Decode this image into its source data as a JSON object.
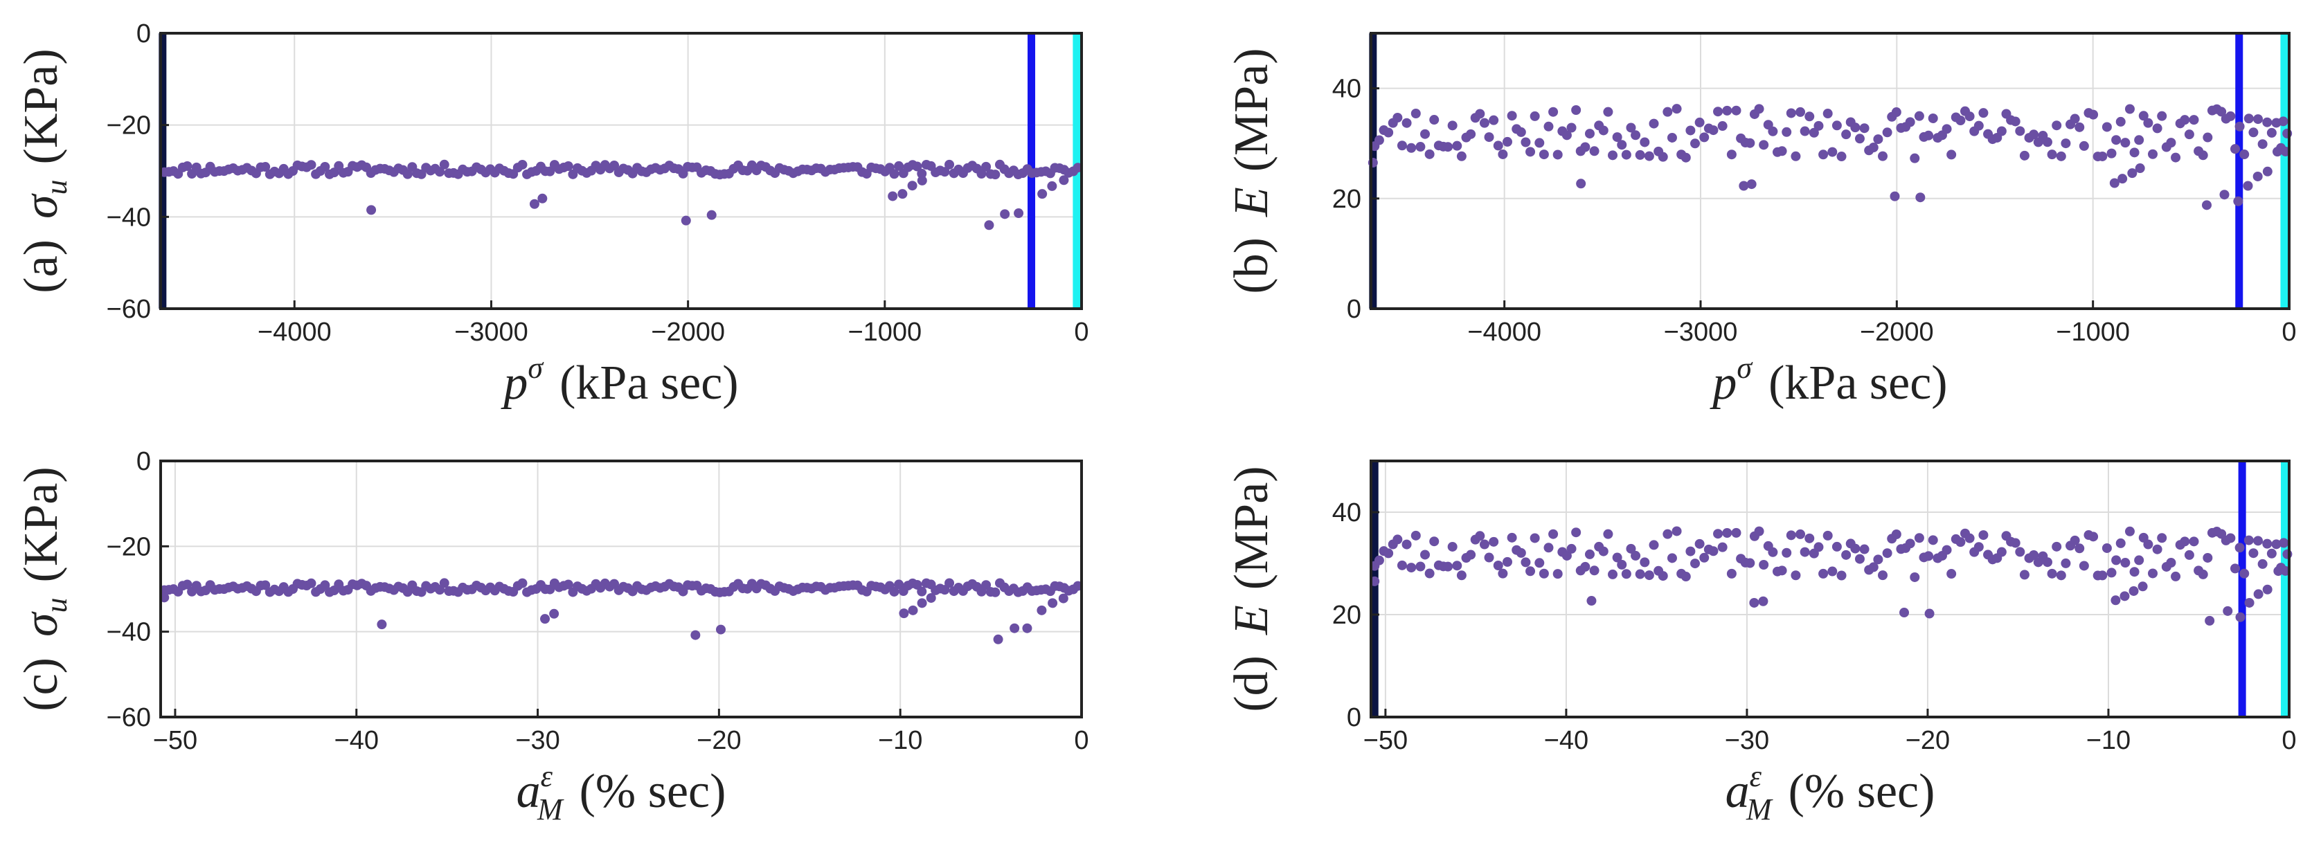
{
  "colors": {
    "points": "#6a4fa3",
    "navy_line": "#0b1442",
    "blue_line": "#1414ee",
    "cyan_line": "#1ef2f2",
    "frame": "#222222",
    "grid": "#dcdcdc"
  },
  "chart_data": [
    {
      "id": "a",
      "type": "scatter",
      "panel_label": "(a)",
      "ylabel_symbol": "σ",
      "ylabel_sub": "u",
      "ylabel_unit": "(KPa)",
      "xlabel_symbol": "p",
      "xlabel_sup": "σ",
      "xlabel_sub": "",
      "xlabel_unit": "(kPa sec)",
      "xlim": [
        -4680,
        0
      ],
      "ylim": [
        -60,
        0
      ],
      "xticks": [
        -4000,
        -3000,
        -2000,
        -1000,
        0
      ],
      "yticks": [
        -60,
        -40,
        -20,
        0
      ],
      "xtick_labels": [
        "−4000",
        "−3000",
        "−2000",
        "−1000",
        "0"
      ],
      "ytick_labels": [
        "−60",
        "−40",
        "−20",
        "0"
      ],
      "vlines": [
        {
          "x": -4670,
          "color": "#0b1442"
        },
        {
          "x": -255,
          "color": "#1414ee"
        },
        {
          "x": -25,
          "color": "#1ef2f2"
        }
      ],
      "outliers": [
        [
          -3610,
          -38.5
        ],
        [
          -2780,
          -37.2
        ],
        [
          -2740,
          -36.0
        ],
        [
          -2010,
          -40.8
        ],
        [
          -1880,
          -39.6
        ],
        [
          -960,
          -35.5
        ],
        [
          -910,
          -35.0
        ],
        [
          -860,
          -33.2
        ],
        [
          -810,
          -32.1
        ],
        [
          -470,
          -41.8
        ],
        [
          -390,
          -39.4
        ],
        [
          -320,
          -39.2
        ],
        [
          -200,
          -35.0
        ],
        [
          -150,
          -33.3
        ],
        [
          -90,
          -32.0
        ]
      ]
    },
    {
      "id": "b",
      "type": "scatter",
      "panel_label": "(b)",
      "ylabel_symbol": "E",
      "ylabel_sub": "",
      "ylabel_unit": "(MPa)",
      "xlabel_symbol": "p",
      "xlabel_sup": "σ",
      "xlabel_sub": "",
      "xlabel_unit": "(kPa sec)",
      "xlim": [
        -4680,
        0
      ],
      "ylim": [
        0,
        50
      ],
      "xticks": [
        -4000,
        -3000,
        -2000,
        -1000,
        0
      ],
      "yticks": [
        0,
        20,
        40
      ],
      "xtick_labels": [
        "−4000",
        "−3000",
        "−2000",
        "−1000",
        "0"
      ],
      "ytick_labels": [
        "0",
        "20",
        "40"
      ],
      "vlines": [
        {
          "x": -4670,
          "color": "#0b1442"
        },
        {
          "x": -255,
          "color": "#1414ee"
        },
        {
          "x": -25,
          "color": "#1ef2f2"
        }
      ],
      "outliers": [
        [
          -4670,
          26.5
        ],
        [
          -3610,
          22.7
        ],
        [
          -2780,
          22.3
        ],
        [
          -2740,
          22.6
        ],
        [
          -2010,
          20.4
        ],
        [
          -1880,
          20.2
        ],
        [
          -890,
          22.8
        ],
        [
          -850,
          23.6
        ],
        [
          -800,
          24.6
        ],
        [
          -760,
          25.5
        ],
        [
          -420,
          18.8
        ],
        [
          -330,
          20.7
        ],
        [
          -260,
          19.5
        ],
        [
          -210,
          22.3
        ],
        [
          -160,
          24.0
        ],
        [
          -110,
          24.9
        ],
        [
          -60,
          28.5
        ],
        [
          -30,
          34.0
        ],
        [
          -10,
          31.8
        ]
      ]
    },
    {
      "id": "c",
      "type": "scatter",
      "panel_label": "(c)",
      "ylabel_symbol": "σ",
      "ylabel_sub": "u",
      "ylabel_unit": "(KPa)",
      "xlabel_symbol": "a",
      "xlabel_sup": "ε",
      "xlabel_sub": "M",
      "xlabel_unit": "(% sec)",
      "xlim": [
        -50.8,
        0
      ],
      "ylim": [
        -60,
        0
      ],
      "xticks": [
        -50,
        -40,
        -30,
        -20,
        -10,
        0
      ],
      "yticks": [
        -60,
        -40,
        -20,
        0
      ],
      "xtick_labels": [
        "−50",
        "−40",
        "−30",
        "−20",
        "−10",
        "0"
      ],
      "ytick_labels": [
        "−60",
        "−40",
        "−20",
        "0"
      ],
      "vlines": [],
      "outliers": [
        [
          -50.6,
          -32.0
        ],
        [
          -38.6,
          -38.3
        ],
        [
          -29.6,
          -37.0
        ],
        [
          -29.1,
          -35.8
        ],
        [
          -21.3,
          -40.8
        ],
        [
          -19.9,
          -39.5
        ],
        [
          -9.8,
          -35.7
        ],
        [
          -9.3,
          -35.0
        ],
        [
          -8.8,
          -33.3
        ],
        [
          -8.3,
          -32.1
        ],
        [
          -4.6,
          -41.8
        ],
        [
          -3.7,
          -39.2
        ],
        [
          -3.0,
          -39.2
        ],
        [
          -2.2,
          -35.0
        ],
        [
          -1.6,
          -33.3
        ],
        [
          -1.0,
          -32.2
        ]
      ]
    },
    {
      "id": "d",
      "type": "scatter",
      "panel_label": "(d)",
      "ylabel_symbol": "E",
      "ylabel_sub": "",
      "ylabel_unit": "(MPa)",
      "xlabel_symbol": "a",
      "xlabel_sup": "ε",
      "xlabel_sub": "M",
      "xlabel_unit": "(% sec)",
      "xlim": [
        -50.8,
        0
      ],
      "ylim": [
        0,
        50
      ],
      "xticks": [
        -50,
        -40,
        -30,
        -20,
        -10,
        0
      ],
      "yticks": [
        0,
        20,
        40
      ],
      "xtick_labels": [
        "−50",
        "−40",
        "−30",
        "−20",
        "−10",
        "0"
      ],
      "ytick_labels": [
        "0",
        "20",
        "40"
      ],
      "vlines": [
        {
          "x": -50.6,
          "color": "#0b1442"
        },
        {
          "x": -2.6,
          "color": "#1414ee"
        },
        {
          "x": -0.25,
          "color": "#1ef2f2"
        }
      ],
      "outliers": [
        [
          -50.6,
          26.5
        ],
        [
          -38.6,
          22.7
        ],
        [
          -29.6,
          22.3
        ],
        [
          -29.1,
          22.6
        ],
        [
          -21.3,
          20.4
        ],
        [
          -19.9,
          20.2
        ],
        [
          -9.6,
          22.8
        ],
        [
          -9.1,
          23.6
        ],
        [
          -8.6,
          24.6
        ],
        [
          -8.1,
          25.5
        ],
        [
          -4.4,
          18.8
        ],
        [
          -3.4,
          20.7
        ],
        [
          -2.7,
          19.5
        ],
        [
          -2.2,
          22.3
        ],
        [
          -1.7,
          24.0
        ],
        [
          -1.2,
          24.9
        ],
        [
          -0.6,
          28.5
        ],
        [
          -0.3,
          34.0
        ],
        [
          -0.1,
          31.8
        ]
      ]
    }
  ]
}
